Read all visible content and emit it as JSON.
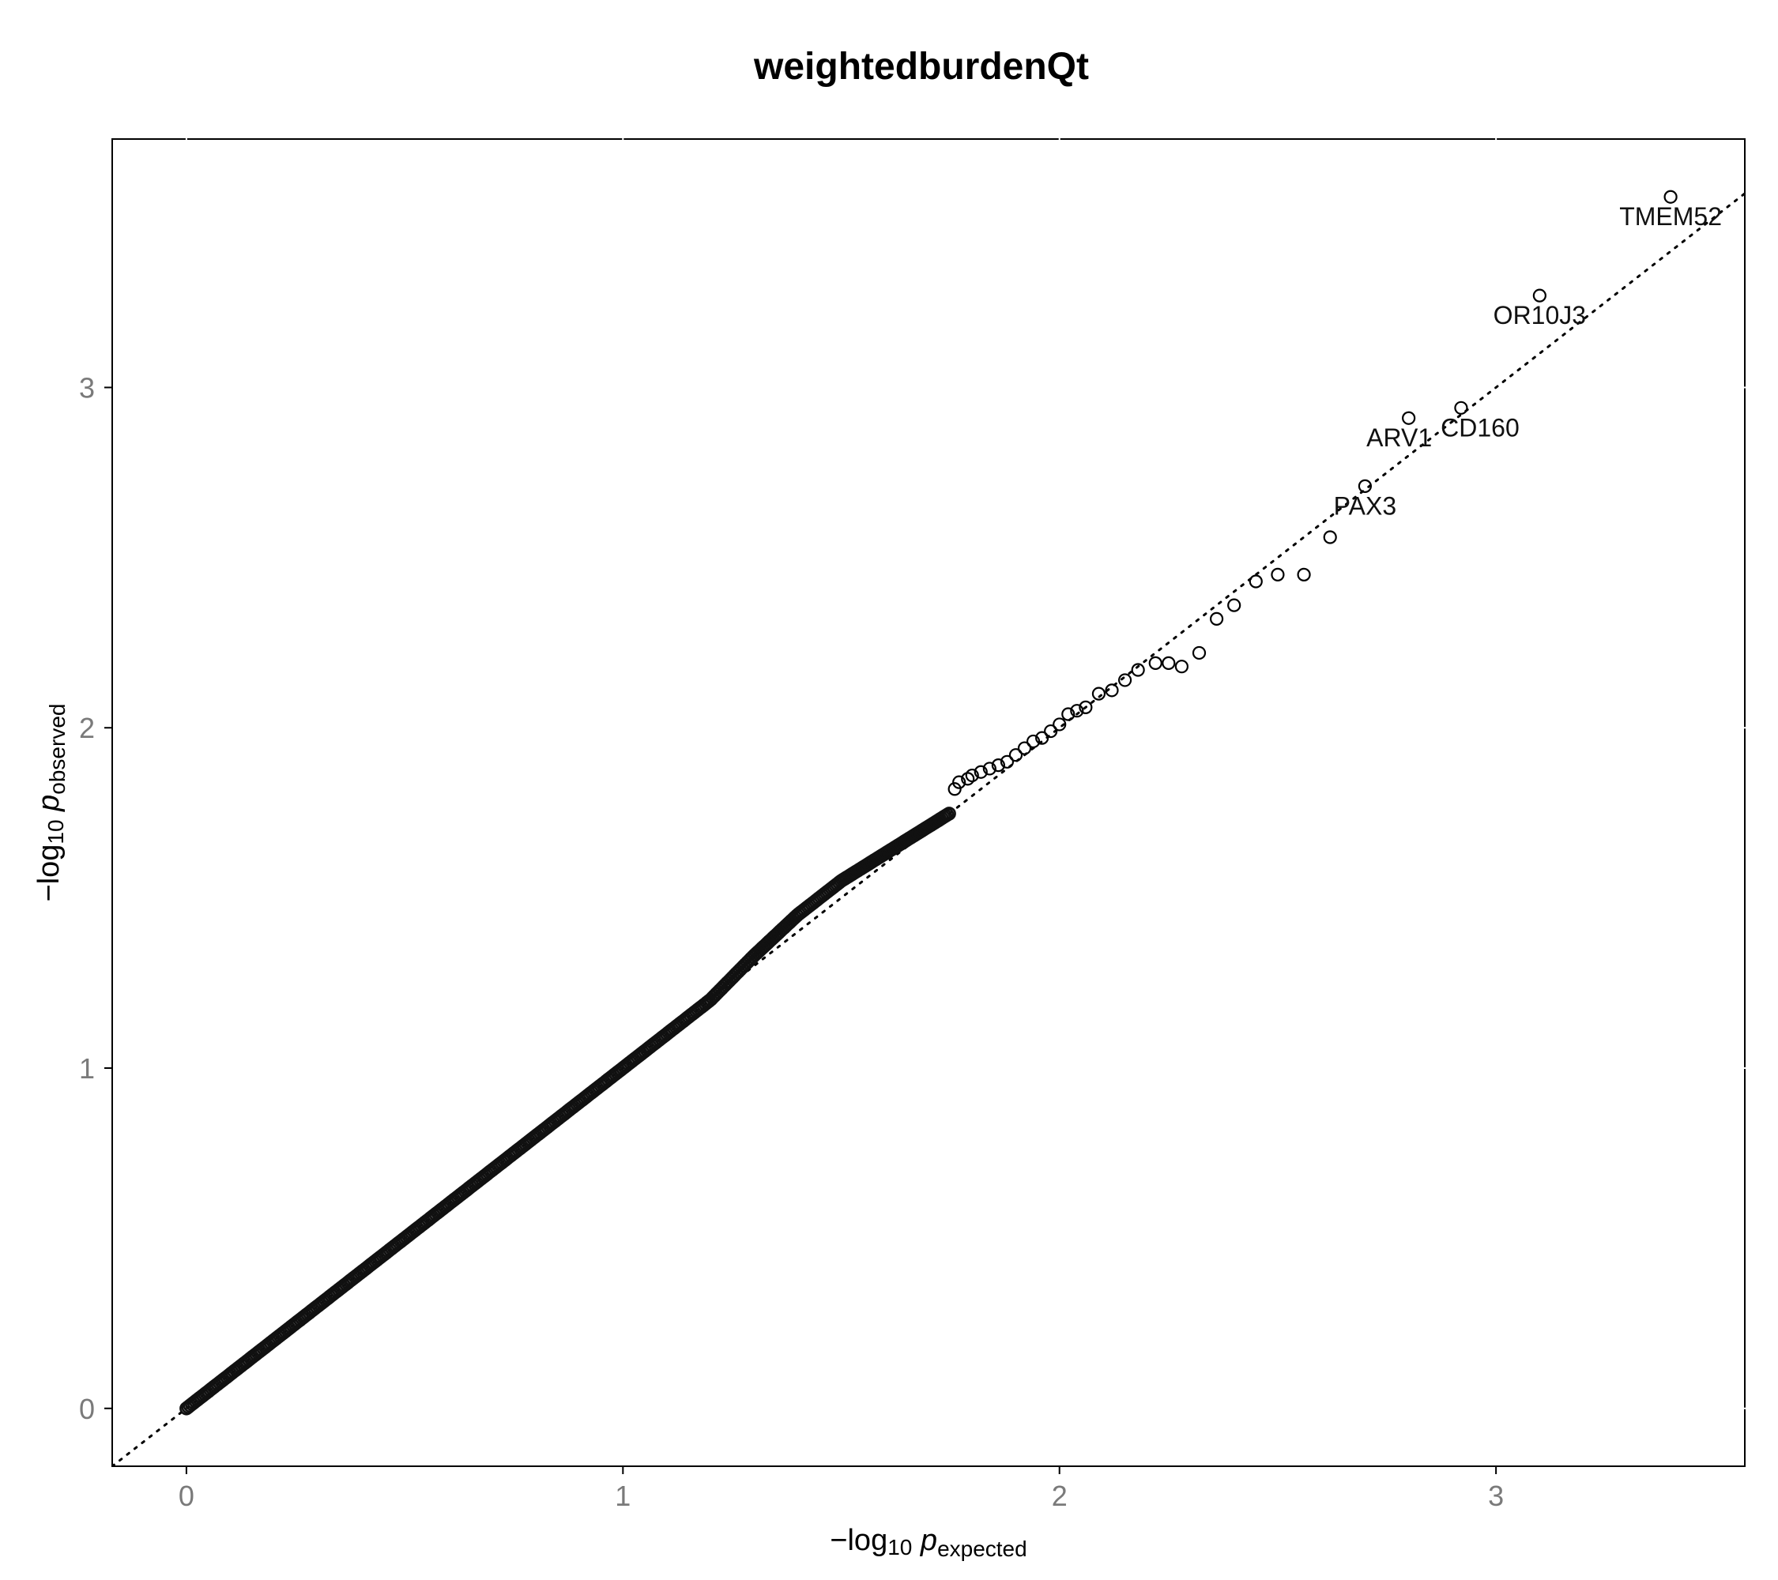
{
  "chart_data": {
    "type": "scatter",
    "title": "weightedburdenQt",
    "xlabel": {
      "prefix": "−log",
      "sub": "10",
      "var": "p",
      "var_sub": "expected"
    },
    "ylabel": {
      "prefix": "−log",
      "sub": "10",
      "var": "p",
      "var_sub": "observed"
    },
    "xlim": [
      -0.17,
      3.57
    ],
    "ylim": [
      -0.17,
      3.73
    ],
    "x_ticks": [
      0,
      1,
      2,
      3
    ],
    "y_ticks": [
      0,
      1,
      2,
      3
    ],
    "grid": false,
    "reference_line": {
      "style": "dotted",
      "slope": 1,
      "intercept": 0
    },
    "bulk_curve": {
      "description": "densely packed points from (0,0) to about (1.75,1.75)",
      "x": [
        0.0,
        0.2,
        0.4,
        0.6,
        0.8,
        1.0,
        1.1,
        1.2,
        1.3,
        1.4,
        1.5,
        1.6,
        1.7,
        1.75
      ],
      "y": [
        0.0,
        0.2,
        0.4,
        0.6,
        0.8,
        1.0,
        1.1,
        1.2,
        1.33,
        1.45,
        1.55,
        1.63,
        1.71,
        1.75
      ]
    },
    "points": [
      {
        "x": 1.76,
        "y": 1.82
      },
      {
        "x": 1.77,
        "y": 1.84
      },
      {
        "x": 1.79,
        "y": 1.85
      },
      {
        "x": 1.8,
        "y": 1.86
      },
      {
        "x": 1.82,
        "y": 1.87
      },
      {
        "x": 1.84,
        "y": 1.88
      },
      {
        "x": 1.86,
        "y": 1.89
      },
      {
        "x": 1.88,
        "y": 1.9
      },
      {
        "x": 1.9,
        "y": 1.92
      },
      {
        "x": 1.92,
        "y": 1.94
      },
      {
        "x": 1.94,
        "y": 1.96
      },
      {
        "x": 1.96,
        "y": 1.97
      },
      {
        "x": 1.98,
        "y": 1.99
      },
      {
        "x": 2.0,
        "y": 2.01
      },
      {
        "x": 2.02,
        "y": 2.04
      },
      {
        "x": 2.04,
        "y": 2.05
      },
      {
        "x": 2.06,
        "y": 2.06
      },
      {
        "x": 2.09,
        "y": 2.1
      },
      {
        "x": 2.12,
        "y": 2.11
      },
      {
        "x": 2.15,
        "y": 2.14
      },
      {
        "x": 2.18,
        "y": 2.17
      },
      {
        "x": 2.22,
        "y": 2.19
      },
      {
        "x": 2.25,
        "y": 2.19
      },
      {
        "x": 2.28,
        "y": 2.18
      },
      {
        "x": 2.32,
        "y": 2.22
      },
      {
        "x": 2.36,
        "y": 2.32
      },
      {
        "x": 2.4,
        "y": 2.36
      },
      {
        "x": 2.45,
        "y": 2.43
      },
      {
        "x": 2.5,
        "y": 2.45
      },
      {
        "x": 2.56,
        "y": 2.45
      },
      {
        "x": 2.62,
        "y": 2.56
      },
      {
        "x": 2.7,
        "y": 2.71,
        "label": "PAX3"
      },
      {
        "x": 2.8,
        "y": 2.91,
        "label": "ARV1"
      },
      {
        "x": 2.92,
        "y": 2.94,
        "label": "CD160"
      },
      {
        "x": 3.1,
        "y": 3.27,
        "label": "OR10J3"
      },
      {
        "x": 3.4,
        "y": 3.56,
        "label": "TMEM52"
      }
    ]
  }
}
